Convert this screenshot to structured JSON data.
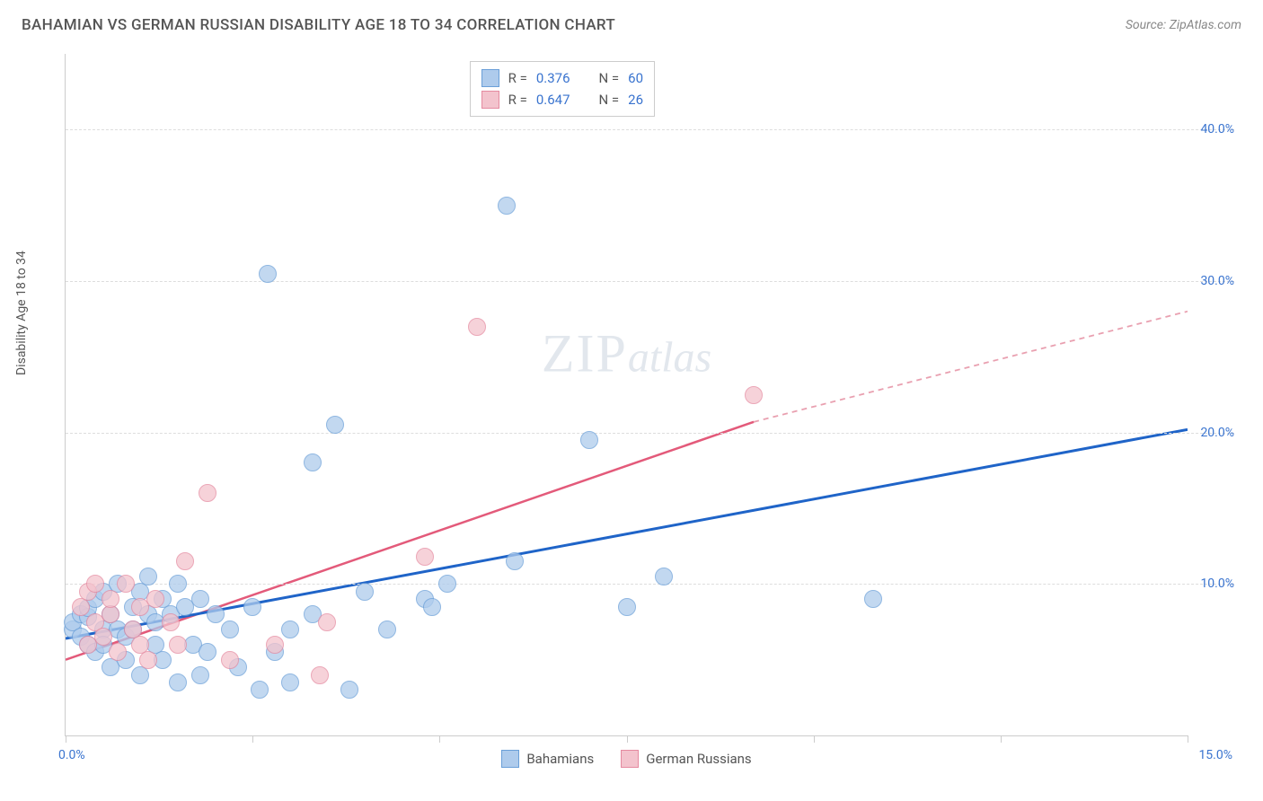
{
  "title": "BAHAMIAN VS GERMAN RUSSIAN DISABILITY AGE 18 TO 34 CORRELATION CHART",
  "source": "Source: ZipAtlas.com",
  "ylabel": "Disability Age 18 to 34",
  "watermark_a": "ZIP",
  "watermark_b": "atlas",
  "chart": {
    "type": "scatter",
    "background_color": "#ffffff",
    "grid_color": "#dddddd",
    "axis_color": "#cccccc",
    "tick_color": "#3a74cf",
    "xlim": [
      0,
      15
    ],
    "ylim": [
      0,
      45
    ],
    "yticks": [
      10,
      20,
      30,
      40
    ],
    "ytick_labels": [
      "10.0%",
      "20.0%",
      "30.0%",
      "40.0%"
    ],
    "xtick_left": "0.0%",
    "xtick_right": "15.0%",
    "xtick_marks": [
      0,
      2.5,
      5,
      7.5,
      10,
      12.5,
      15
    ],
    "point_radius": 10,
    "series": [
      {
        "name": "Bahamians",
        "fill": "#aecbec",
        "stroke": "#6a9fd8",
        "R": "0.376",
        "N": "60",
        "trend": {
          "x1": 0,
          "y1": 6.4,
          "x2": 15,
          "y2": 20.2,
          "color": "#1f64c8",
          "width": 3,
          "dash": ""
        },
        "points": [
          [
            0.1,
            7.0
          ],
          [
            0.1,
            7.5
          ],
          [
            0.2,
            6.5
          ],
          [
            0.2,
            8.0
          ],
          [
            0.3,
            6.0
          ],
          [
            0.3,
            7.8
          ],
          [
            0.3,
            8.4
          ],
          [
            0.4,
            5.5
          ],
          [
            0.4,
            9.0
          ],
          [
            0.5,
            7.0
          ],
          [
            0.5,
            9.5
          ],
          [
            0.5,
            6.0
          ],
          [
            0.6,
            8.0
          ],
          [
            0.6,
            4.5
          ],
          [
            0.7,
            7.0
          ],
          [
            0.7,
            10.0
          ],
          [
            0.8,
            6.5
          ],
          [
            0.8,
            5.0
          ],
          [
            0.9,
            8.5
          ],
          [
            0.9,
            7.0
          ],
          [
            1.0,
            9.5
          ],
          [
            1.0,
            4.0
          ],
          [
            1.1,
            8.0
          ],
          [
            1.1,
            10.5
          ],
          [
            1.2,
            6.0
          ],
          [
            1.2,
            7.5
          ],
          [
            1.3,
            9.0
          ],
          [
            1.3,
            5.0
          ],
          [
            1.4,
            8.0
          ],
          [
            1.5,
            10.0
          ],
          [
            1.5,
            3.5
          ],
          [
            1.6,
            8.5
          ],
          [
            1.7,
            6.0
          ],
          [
            1.8,
            9.0
          ],
          [
            1.8,
            4.0
          ],
          [
            1.9,
            5.5
          ],
          [
            2.0,
            8.0
          ],
          [
            2.2,
            7.0
          ],
          [
            2.3,
            4.5
          ],
          [
            2.5,
            8.5
          ],
          [
            2.6,
            3.0
          ],
          [
            2.7,
            30.5
          ],
          [
            2.8,
            5.5
          ],
          [
            3.0,
            7.0
          ],
          [
            3.0,
            3.5
          ],
          [
            3.3,
            18.0
          ],
          [
            3.3,
            8.0
          ],
          [
            3.6,
            20.5
          ],
          [
            3.8,
            3.0
          ],
          [
            4.0,
            9.5
          ],
          [
            4.3,
            7.0
          ],
          [
            4.8,
            9.0
          ],
          [
            4.9,
            8.5
          ],
          [
            5.1,
            10.0
          ],
          [
            5.9,
            35.0
          ],
          [
            6.0,
            11.5
          ],
          [
            7.0,
            19.5
          ],
          [
            7.5,
            8.5
          ],
          [
            8.0,
            10.5
          ],
          [
            10.8,
            9.0
          ]
        ]
      },
      {
        "name": "German Russians",
        "fill": "#f3c3cd",
        "stroke": "#e58aa0",
        "R": "0.647",
        "N": "26",
        "trend_solid": {
          "x1": 0,
          "y1": 5.0,
          "x2": 9.2,
          "y2": 20.7,
          "color": "#e35a7a",
          "width": 2.5,
          "dash": ""
        },
        "trend_dash": {
          "x1": 9.2,
          "y1": 20.7,
          "x2": 15,
          "y2": 28.0,
          "color": "#e9a0b0",
          "width": 1.8,
          "dash": "6 5"
        },
        "points": [
          [
            0.2,
            8.5
          ],
          [
            0.3,
            6.0
          ],
          [
            0.3,
            9.5
          ],
          [
            0.4,
            7.5
          ],
          [
            0.4,
            10.0
          ],
          [
            0.5,
            6.5
          ],
          [
            0.6,
            8.0
          ],
          [
            0.6,
            9.0
          ],
          [
            0.7,
            5.5
          ],
          [
            0.8,
            10.0
          ],
          [
            0.9,
            7.0
          ],
          [
            1.0,
            8.5
          ],
          [
            1.0,
            6.0
          ],
          [
            1.1,
            5.0
          ],
          [
            1.2,
            9.0
          ],
          [
            1.4,
            7.5
          ],
          [
            1.5,
            6.0
          ],
          [
            1.6,
            11.5
          ],
          [
            1.9,
            16.0
          ],
          [
            2.2,
            5.0
          ],
          [
            2.8,
            6.0
          ],
          [
            3.4,
            4.0
          ],
          [
            3.5,
            7.5
          ],
          [
            4.8,
            11.8
          ],
          [
            5.5,
            27.0
          ],
          [
            9.2,
            22.5
          ]
        ]
      }
    ]
  },
  "legend": {
    "s1": "Bahamians",
    "s2": "German Russians"
  },
  "stats_labels": {
    "R": "R =",
    "N": "N ="
  }
}
